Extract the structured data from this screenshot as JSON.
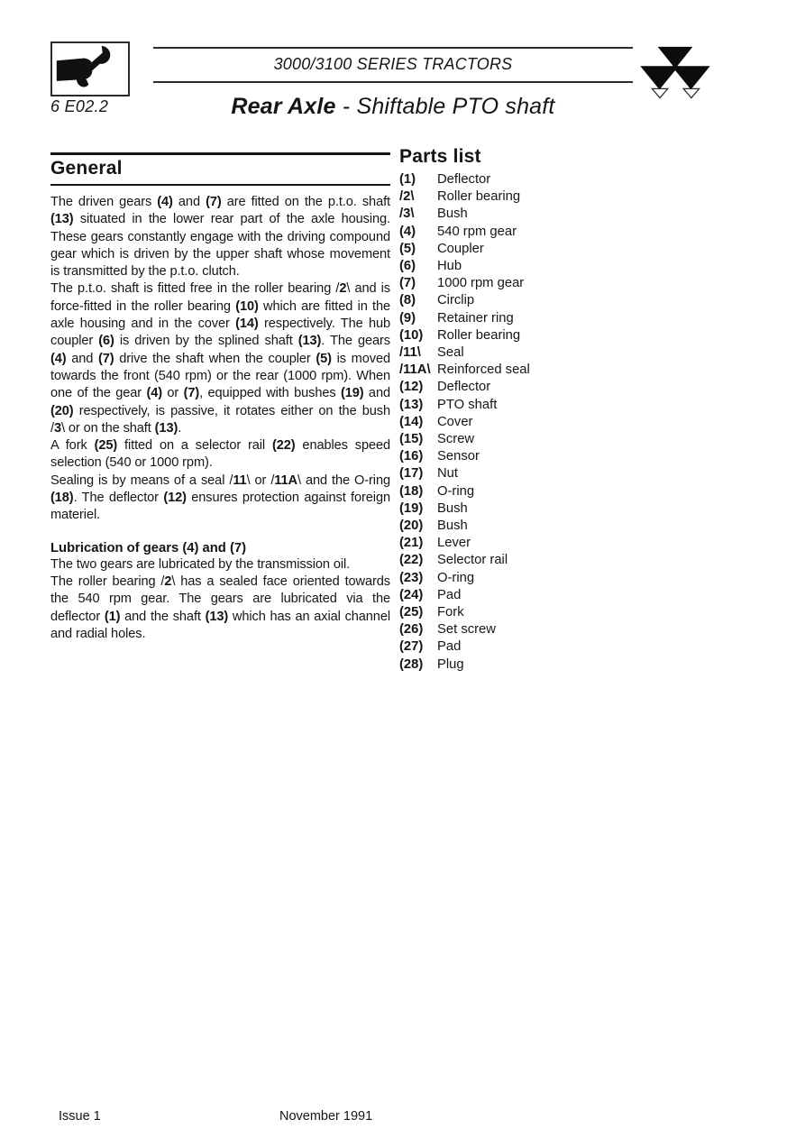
{
  "header": {
    "page_id": "6 E02.2",
    "series_title": "3000/3100 SERIES TRACTORS",
    "title_bold": "Rear Axle",
    "title_rest": " - Shiftable PTO shaft",
    "left_icon": "hand-holding-wrench-icon",
    "right_icon": "massey-ferguson-triangles-icon"
  },
  "general": {
    "heading": "General",
    "paragraphs": [
      "The driven gears **(4)** and **(7)** are fitted on the p.t.o. shaft **(13)** situated in the lower rear part of the axle housing. These gears constantly engage with the driving compound gear which is driven by the upper shaft whose movement is transmitted by the p.t.o. clutch.",
      "The p.t.o. shaft is fitted free in the roller bearing /**2**\\ and is force-fitted in the roller bearing **(10)** which are fitted in the axle housing and in the cover **(14)** respectively. The hub coupler **(6)** is driven by the splined shaft **(13)**. The gears **(4)** and **(7)** drive the shaft when the coupler **(5)** is moved towards the front (540 rpm) or the rear (1000 rpm). When one of the gear **(4)** or **(7)**, equipped with bushes **(19)** and **(20)** respectively, is passive, it rotates either on the bush /**3**\\ or on the shaft **(13)**.",
      "A fork **(25)** fitted on a selector rail **(22)** enables speed selection (540 or 1000 rpm).",
      "Sealing is by means of a seal /**11**\\ or /**11A**\\ and the O-ring **(18)**. The deflector **(12)** ensures protection against foreign materiel."
    ],
    "lubrication_heading": "Lubrication of gears (4) and (7)",
    "lubrication_paragraphs": [
      "The two gears are lubricated by the transmission oil.",
      "The roller bearing /**2**\\ has a sealed face oriented towards the 540 rpm gear. The gears are lubricated via the deflector **(1)** and the shaft **(13)** which has an axial channel and radial holes."
    ]
  },
  "parts_list": {
    "heading": "Parts list",
    "items": [
      {
        "num": "(1)",
        "label": "Deflector"
      },
      {
        "num": "/2\\",
        "label": "Roller bearing"
      },
      {
        "num": "/3\\",
        "label": "Bush"
      },
      {
        "num": "(4)",
        "label": "540 rpm gear"
      },
      {
        "num": "(5)",
        "label": "Coupler"
      },
      {
        "num": "(6)",
        "label": "Hub"
      },
      {
        "num": "(7)",
        "label": "1000 rpm gear"
      },
      {
        "num": "(8)",
        "label": "Circlip"
      },
      {
        "num": "(9)",
        "label": "Retainer ring"
      },
      {
        "num": "(10)",
        "label": "Roller bearing"
      },
      {
        "num": "/11\\",
        "label": "Seal"
      },
      {
        "num": "/11A\\",
        "label": "Reinforced seal"
      },
      {
        "num": "(12)",
        "label": "Deflector"
      },
      {
        "num": "(13)",
        "label": "PTO shaft"
      },
      {
        "num": "(14)",
        "label": "Cover"
      },
      {
        "num": "(15)",
        "label": "Screw"
      },
      {
        "num": "(16)",
        "label": "Sensor"
      },
      {
        "num": "(17)",
        "label": "Nut"
      },
      {
        "num": "(18)",
        "label": "O-ring"
      },
      {
        "num": "(19)",
        "label": "Bush"
      },
      {
        "num": "(20)",
        "label": "Bush"
      },
      {
        "num": "(21)",
        "label": "Lever"
      },
      {
        "num": "(22)",
        "label": "Selector rail"
      },
      {
        "num": "(23)",
        "label": "O-ring"
      },
      {
        "num": "(24)",
        "label": "Pad"
      },
      {
        "num": "(25)",
        "label": "Fork"
      },
      {
        "num": "(26)",
        "label": "Set screw"
      },
      {
        "num": "(27)",
        "label": "Pad"
      },
      {
        "num": "(28)",
        "label": "Plug"
      }
    ]
  },
  "footer": {
    "issue": "Issue 1",
    "date": "November 1991"
  },
  "colors": {
    "ink": "#151515",
    "paper": "#ffffff"
  }
}
